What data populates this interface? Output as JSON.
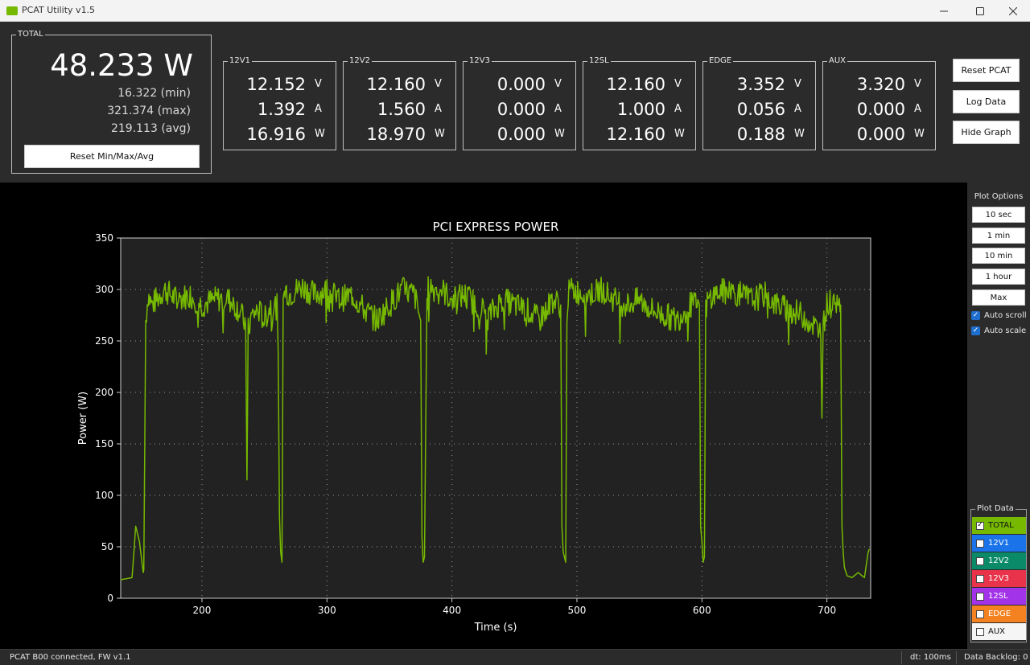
{
  "window": {
    "title": "PCAT Utility v1.5"
  },
  "total": {
    "label": "TOTAL",
    "value": "48.233 W",
    "min": "16.322 (min)",
    "max": "321.374 (max)",
    "avg": "219.113 (avg)",
    "reset_label": "Reset Min/Max/Avg"
  },
  "rails": [
    {
      "label": "12V1",
      "volts": "12.152",
      "amps": "1.392",
      "watts": "16.916"
    },
    {
      "label": "12V2",
      "volts": "12.160",
      "amps": "1.560",
      "watts": "18.970"
    },
    {
      "label": "12V3",
      "volts": "0.000",
      "amps": "0.000",
      "watts": "0.000"
    },
    {
      "label": "12SL",
      "volts": "12.160",
      "amps": "1.000",
      "watts": "12.160"
    },
    {
      "label": "EDGE",
      "volts": "3.352",
      "amps": "0.056",
      "watts": "0.188"
    },
    {
      "label": "AUX",
      "volts": "3.320",
      "amps": "0.000",
      "watts": "0.000"
    }
  ],
  "units": {
    "v": "V",
    "a": "A",
    "w": "W"
  },
  "buttons": {
    "reset_pcat": "Reset PCAT",
    "log_data": "Log Data",
    "hide_graph": "Hide Graph"
  },
  "plot_options": {
    "title": "Plot Options",
    "ranges": [
      "10 sec",
      "1 min",
      "10 min",
      "1 hour",
      "Max"
    ],
    "auto_scroll": "Auto scroll",
    "auto_scale": "Auto scale"
  },
  "plot_data": {
    "title": "Plot Data",
    "items": [
      {
        "label": "TOTAL",
        "color": "#76b900",
        "checked": true
      },
      {
        "label": "12V1",
        "color": "#1a73e8",
        "checked": false
      },
      {
        "label": "12V2",
        "color": "#0b8a6a",
        "checked": false
      },
      {
        "label": "12V3",
        "color": "#e8334a",
        "checked": false
      },
      {
        "label": "12SL",
        "color": "#a233e8",
        "checked": false
      },
      {
        "label": "EDGE",
        "color": "#f58220",
        "checked": false
      },
      {
        "label": "AUX",
        "color": "#f5f5f5",
        "checked": false
      }
    ]
  },
  "status": {
    "connection": "PCAT B00 connected, FW v1.1",
    "dt": "dt: 100ms",
    "backlog": "Data Backlog: 0"
  },
  "chart_data": {
    "type": "line",
    "title": "PCI EXPRESS POWER",
    "xlabel": "Time (s)",
    "ylabel": "Power (W)",
    "xlim": [
      135,
      735
    ],
    "ylim": [
      0,
      350
    ],
    "xticks": [
      200,
      300,
      400,
      500,
      600,
      700
    ],
    "yticks": [
      0,
      50,
      100,
      150,
      200,
      250,
      300,
      350
    ],
    "grid": true,
    "line_color": "#76b900",
    "series": [
      {
        "x": [
          135,
          144,
          145,
          147,
          150,
          153,
          153.5,
          155,
          157,
          160,
          170,
          180,
          190,
          200,
          210,
          220,
          230,
          235,
          236,
          237,
          240,
          245,
          250,
          255,
          260,
          261,
          262,
          263,
          264,
          265,
          266,
          267,
          270,
          280,
          290,
          300,
          310,
          320,
          330,
          340,
          350,
          360,
          370,
          375,
          376,
          377,
          378,
          380,
          381,
          382,
          385,
          390,
          400,
          410,
          420,
          430,
          440,
          450,
          460,
          470,
          480,
          487,
          488,
          489,
          490,
          491,
          492,
          493,
          495,
          500,
          510,
          520,
          530,
          540,
          550,
          560,
          570,
          580,
          590,
          598,
          599,
          600,
          601,
          602,
          603,
          605,
          610,
          620,
          630,
          640,
          650,
          660,
          670,
          680,
          690,
          695,
          696,
          697,
          700,
          705,
          710,
          711,
          712,
          713,
          714,
          716,
          720,
          725,
          730,
          733,
          734
        ],
        "y": [
          18,
          20,
          35,
          70,
          55,
          25,
          28,
          270,
          295,
          285,
          300,
          290,
          295,
          285,
          290,
          292,
          280,
          265,
          115,
          260,
          275,
          280,
          270,
          285,
          283,
          240,
          80,
          45,
          35,
          290,
          295,
          300,
          295,
          303,
          295,
          300,
          290,
          295,
          280,
          270,
          285,
          300,
          295,
          270,
          60,
          35,
          40,
          285,
          300,
          305,
          300,
          302,
          290,
          295,
          285,
          275,
          290,
          285,
          280,
          270,
          290,
          285,
          70,
          45,
          40,
          35,
          280,
          295,
          300,
          298,
          295,
          300,
          290,
          285,
          290,
          280,
          275,
          270,
          285,
          285,
          70,
          55,
          35,
          40,
          280,
          290,
          295,
          300,
          295,
          290,
          295,
          285,
          280,
          275,
          265,
          255,
          175,
          270,
          285,
          290,
          295,
          285,
          70,
          45,
          30,
          22,
          20,
          25,
          20,
          45,
          48
        ]
      }
    ]
  }
}
